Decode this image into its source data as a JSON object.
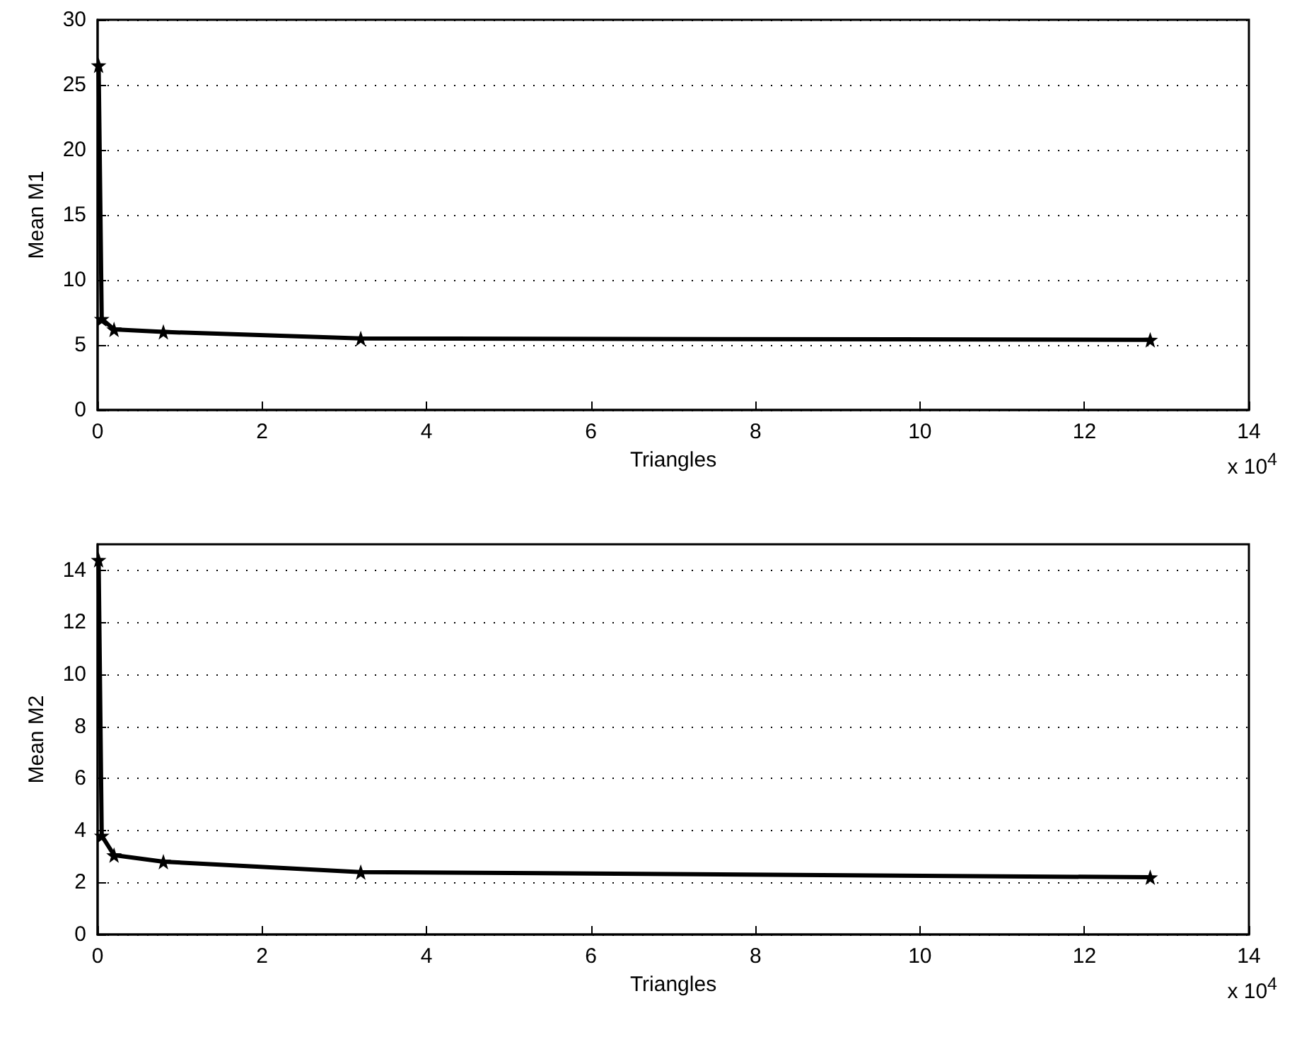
{
  "chart_data": [
    {
      "type": "line",
      "xlabel": "Triangles",
      "ylabel": "Mean M1",
      "annotations": [
        "x 10$^{4}$"
      ],
      "x": [
        0.0125,
        0.05,
        0.2,
        0.8,
        3.2,
        12.8
      ],
      "series": [
        {
          "color": "#000000",
          "values": [
            26.5,
            7.0,
            6.2,
            6.0,
            5.5,
            5.4
          ]
        }
      ],
      "xlim": [
        0,
        14
      ],
      "xticks": [
        0,
        2,
        4,
        6,
        8,
        10,
        12,
        14
      ],
      "ylim": [
        0,
        30
      ],
      "yticks": [
        0,
        5,
        10,
        15,
        20,
        25,
        30
      ],
      "grid": "y",
      "marker": "star",
      "line_style": "solid"
    },
    {
      "type": "line",
      "xlabel": "Triangles",
      "ylabel": "Mean M2",
      "annotations": [
        "x 10$^{4}$"
      ],
      "x": [
        0.0125,
        0.05,
        0.2,
        0.8,
        3.2,
        12.8
      ],
      "series": [
        {
          "color": "#000000",
          "values": [
            14.4,
            3.8,
            3.05,
            2.8,
            2.4,
            2.2
          ]
        }
      ],
      "xlim": [
        0,
        14
      ],
      "xticks": [
        0,
        2,
        4,
        6,
        8,
        10,
        12,
        14
      ],
      "ylim": [
        0,
        15
      ],
      "yticks": [
        0,
        2,
        4,
        6,
        8,
        10,
        12,
        14
      ],
      "grid": "y",
      "marker": "star",
      "line_style": "solid"
    }
  ]
}
